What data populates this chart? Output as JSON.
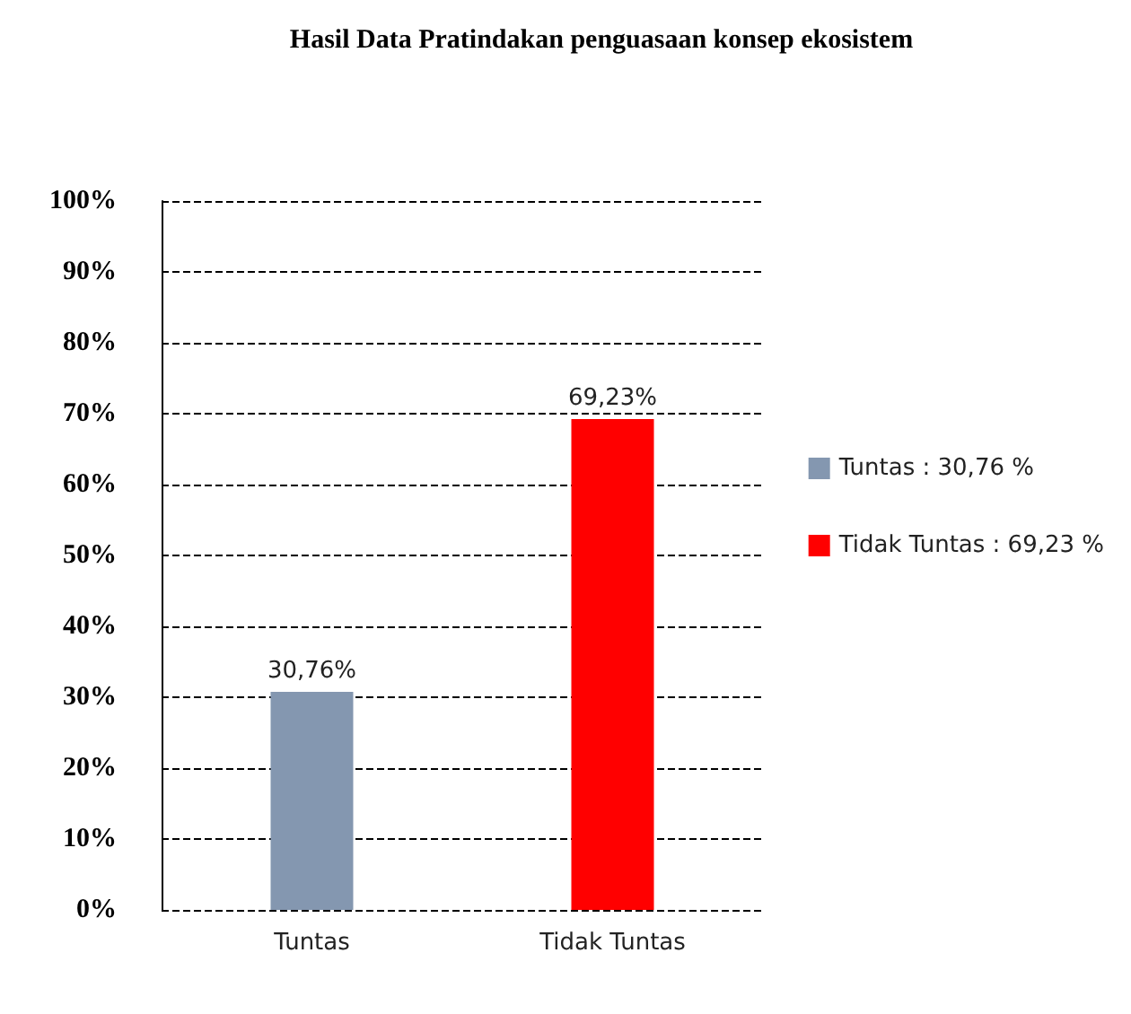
{
  "chart_data": {
    "type": "bar",
    "title": "Hasil Data Pratindakan penguasaan konsep ekosistem",
    "categories": [
      "Tuntas",
      "Tidak Tuntas"
    ],
    "series": [
      {
        "name": "Tuntas : 30,76 %",
        "color": "#8497b0",
        "values": [
          30.76,
          null
        ],
        "value_labels": [
          "30,76%",
          null
        ]
      },
      {
        "name": "Tidak Tuntas : 69,23 %",
        "color": "#ff0000",
        "values": [
          null,
          69.23
        ],
        "value_labels": [
          null,
          "69,23%"
        ]
      }
    ],
    "stacked": true,
    "ylim": [
      0,
      100
    ],
    "yticks": [
      {
        "value": 0,
        "label": "0%"
      },
      {
        "value": 10,
        "label": "10%"
      },
      {
        "value": 20,
        "label": "20%"
      },
      {
        "value": 30,
        "label": "30%"
      },
      {
        "value": 40,
        "label": "40%"
      },
      {
        "value": 50,
        "label": "50%"
      },
      {
        "value": 60,
        "label": "60%"
      },
      {
        "value": 70,
        "label": "70%"
      },
      {
        "value": 80,
        "label": "80%"
      },
      {
        "value": 90,
        "label": "90%"
      },
      {
        "value": 100,
        "label": "100%"
      }
    ],
    "grid": "y",
    "legend": "right"
  }
}
